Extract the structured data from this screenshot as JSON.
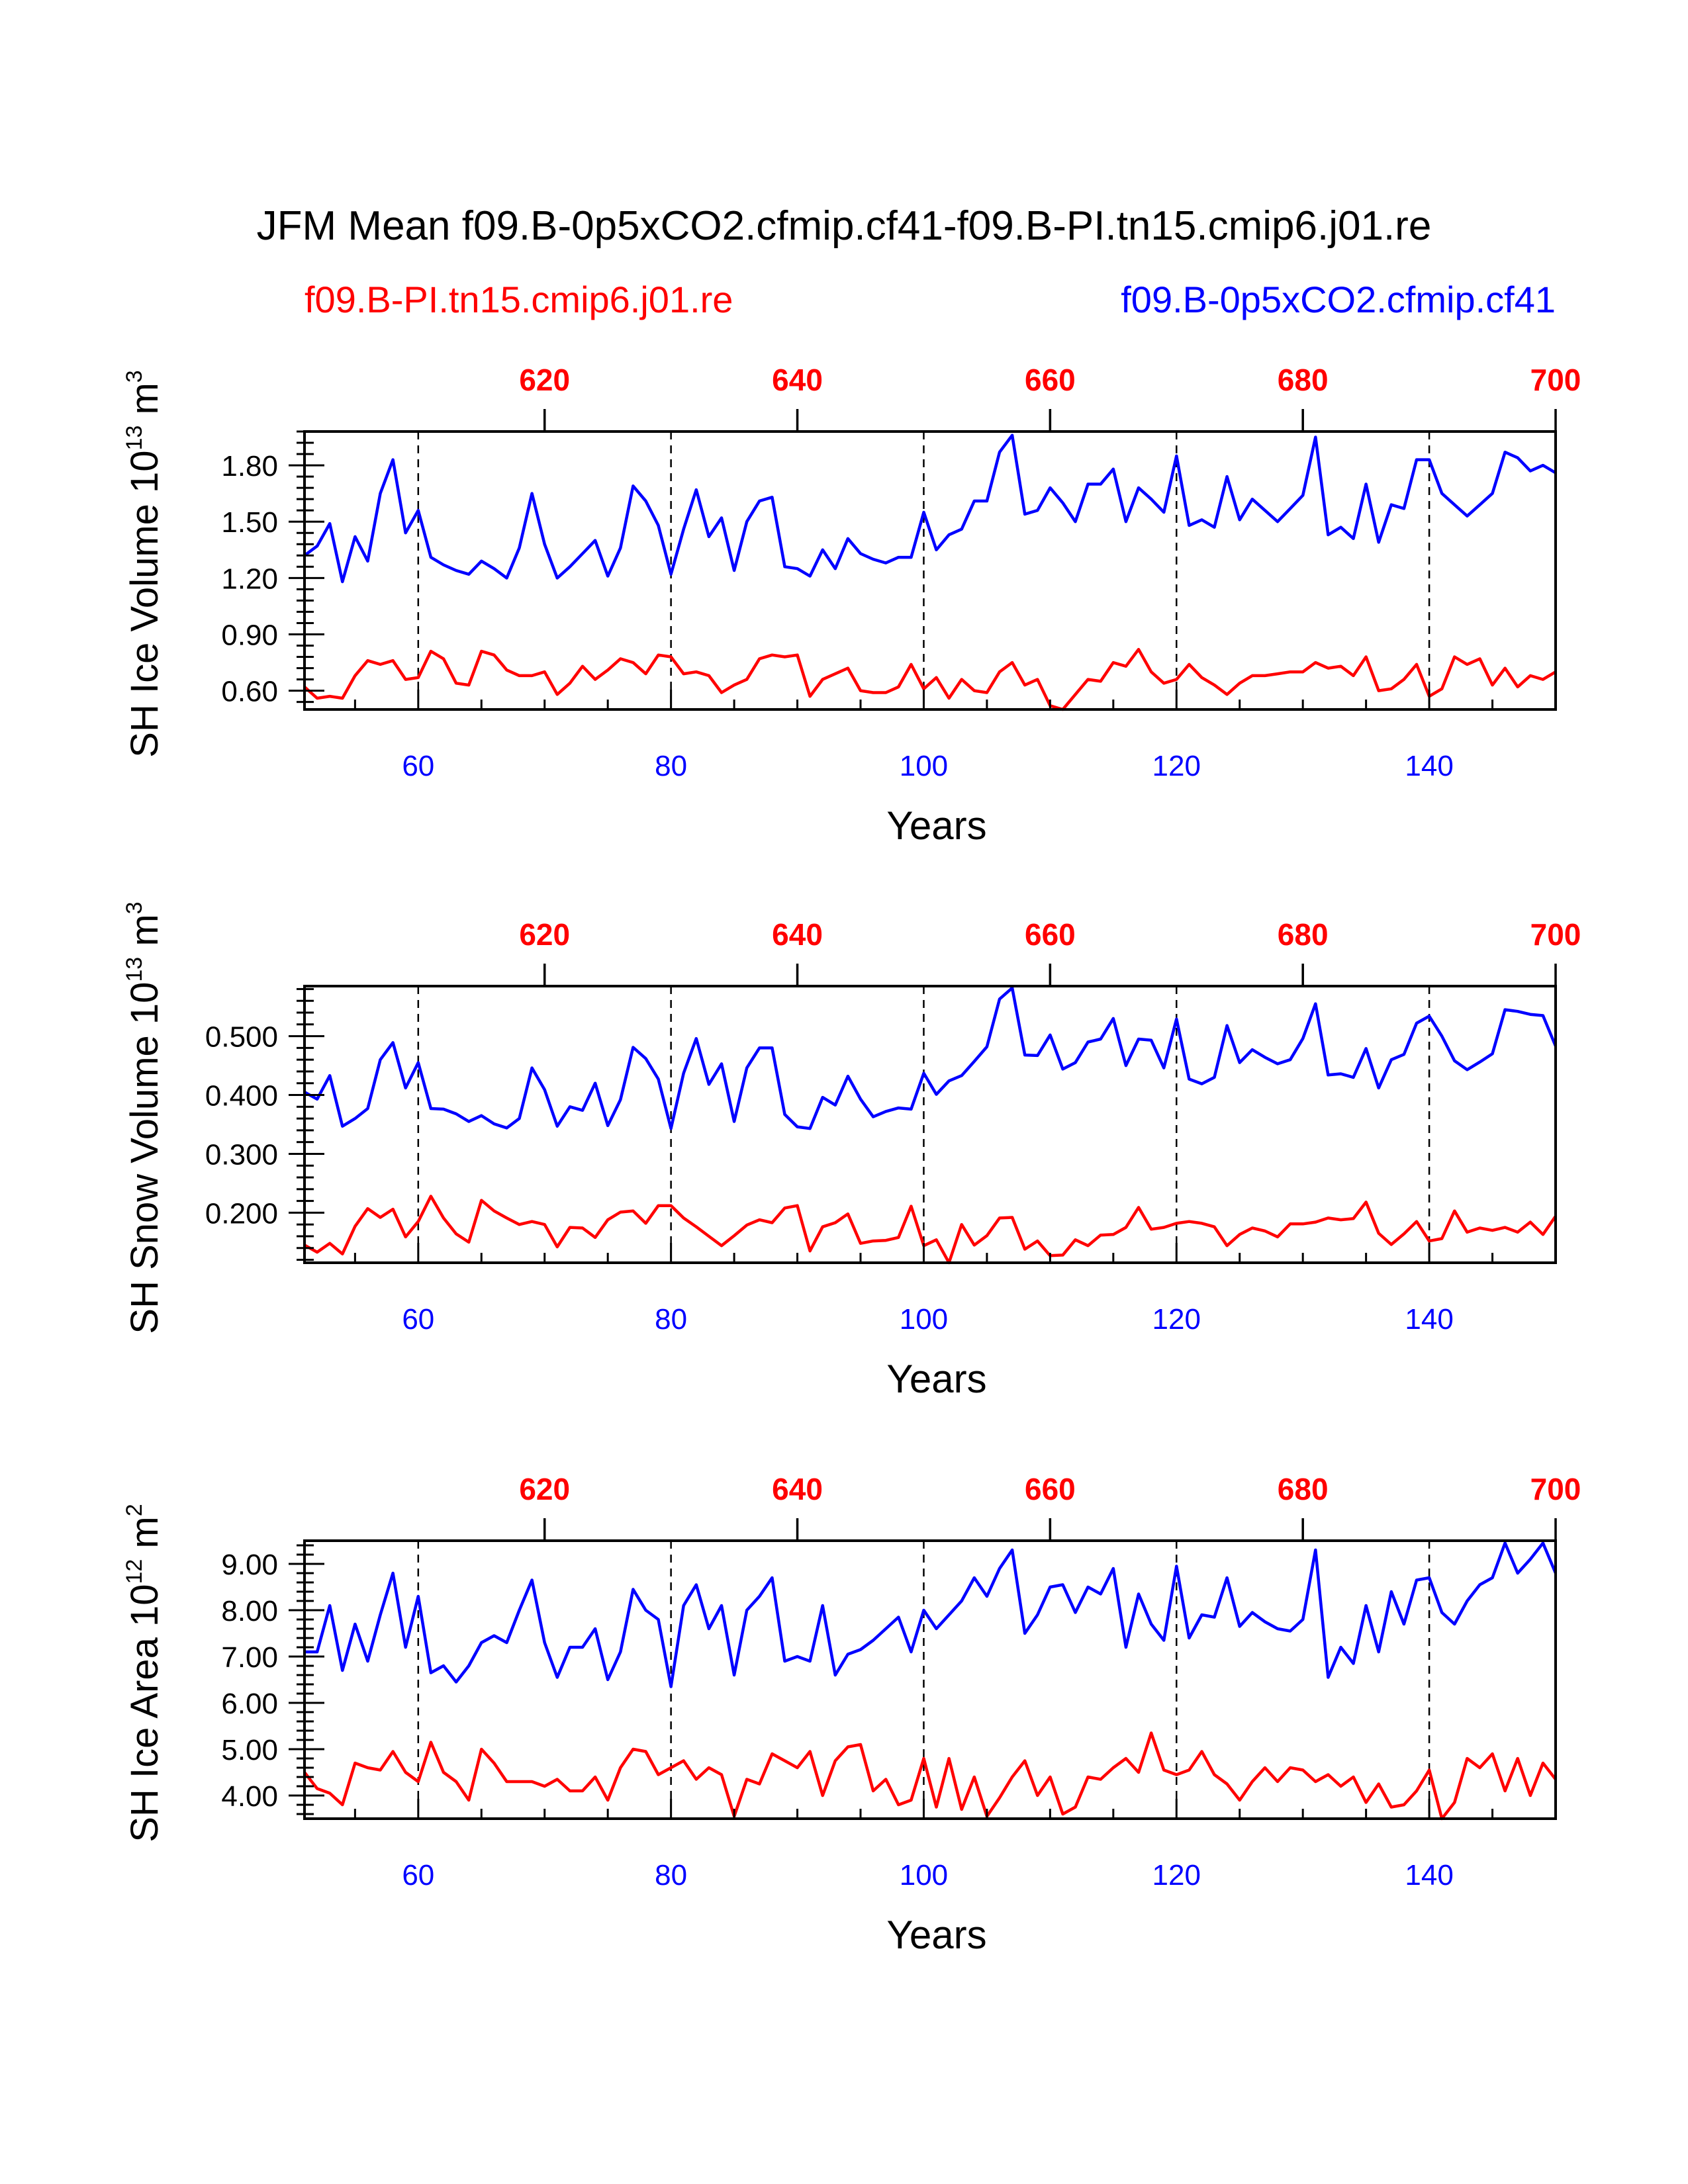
{
  "title": "JFM Mean f09.B-0p5xCO2.cfmip.cf41-f09.B-PI.tn15.cmip6.j01.re",
  "legend": {
    "control": "f09.B-PI.tn15.cmip6.j01.re",
    "experiment": "f09.B-0p5xCO2.cfmip.cf41"
  },
  "colors": {
    "control": "#ff0000",
    "experiment": "#0000ff",
    "axis": "#000000"
  },
  "chart_data": [
    {
      "type": "line",
      "ylabel": {
        "base": "SH Ice Volume 10",
        "exp": "13",
        "unit": " m",
        "unit_exp": "3"
      },
      "xlabel": "Years",
      "xlim": [
        51,
        150
      ],
      "top_xlim": [
        601,
        700
      ],
      "xticks": [
        "60",
        "80",
        "100",
        "120",
        "140"
      ],
      "top_xticks": [
        "620",
        "640",
        "660",
        "680",
        "700"
      ],
      "ylim": [
        0.5,
        1.98
      ],
      "yticks": [
        "0.60",
        "0.90",
        "1.20",
        "1.50",
        "1.80"
      ],
      "series": [
        {
          "name": "f09.B-0p5xCO2.cfmip.cf41",
          "color": "#0000ff",
          "values": [
            1.32,
            1.37,
            1.49,
            1.18,
            1.42,
            1.29,
            1.65,
            1.83,
            1.44,
            1.56,
            1.31,
            1.27,
            1.24,
            1.22,
            1.29,
            1.25,
            1.2,
            1.36,
            1.65,
            1.38,
            1.2,
            1.26,
            1.33,
            1.4,
            1.21,
            1.36,
            1.69,
            1.61,
            1.48,
            1.22,
            1.46,
            1.67,
            1.42,
            1.52,
            1.24,
            1.5,
            1.61,
            1.63,
            1.26,
            1.25,
            1.21,
            1.35,
            1.25,
            1.41,
            1.33,
            1.3,
            1.28,
            1.31,
            1.31,
            1.55,
            1.35,
            1.43,
            1.46,
            1.61,
            1.61,
            1.87,
            1.96,
            1.54,
            1.56,
            1.68,
            1.6,
            1.5,
            1.7,
            1.7,
            1.78,
            1.5,
            1.68,
            1.62,
            1.55,
            1.85,
            1.48,
            1.51,
            1.47,
            1.74,
            1.51,
            1.62,
            1.56,
            1.5,
            1.57,
            1.64,
            1.95,
            1.43,
            1.47,
            1.41,
            1.7,
            1.39,
            1.59,
            1.57,
            1.83,
            1.83,
            1.65,
            1.59,
            1.53,
            1.59,
            1.65,
            1.87,
            1.84,
            1.77,
            1.8,
            1.76
          ]
        },
        {
          "name": "f09.B-PI.tn15.cmip6.j01.re",
          "color": "#ff0000",
          "values": [
            0.62,
            0.56,
            0.57,
            0.56,
            0.68,
            0.76,
            0.74,
            0.76,
            0.66,
            0.67,
            0.81,
            0.77,
            0.64,
            0.63,
            0.81,
            0.79,
            0.71,
            0.68,
            0.68,
            0.7,
            0.58,
            0.64,
            0.73,
            0.66,
            0.71,
            0.77,
            0.75,
            0.69,
            0.79,
            0.78,
            0.69,
            0.7,
            0.68,
            0.59,
            0.63,
            0.66,
            0.77,
            0.79,
            0.78,
            0.79,
            0.57,
            0.66,
            0.69,
            0.72,
            0.6,
            0.59,
            0.59,
            0.62,
            0.74,
            0.61,
            0.67,
            0.56,
            0.66,
            0.6,
            0.59,
            0.7,
            0.75,
            0.63,
            0.66,
            0.52,
            0.5,
            0.58,
            0.66,
            0.65,
            0.75,
            0.73,
            0.82,
            0.7,
            0.64,
            0.66,
            0.74,
            0.67,
            0.63,
            0.58,
            0.64,
            0.68,
            0.68,
            0.69,
            0.7,
            0.7,
            0.75,
            0.72,
            0.73,
            0.68,
            0.78,
            0.6,
            0.61,
            0.66,
            0.74,
            0.57,
            0.61,
            0.78,
            0.74,
            0.77,
            0.63,
            0.72,
            0.62,
            0.68,
            0.66,
            0.7
          ]
        }
      ]
    },
    {
      "type": "line",
      "ylabel": {
        "base": "SH Snow Volume 10",
        "exp": "13",
        "unit": " m",
        "unit_exp": "3"
      },
      "xlabel": "Years",
      "xlim": [
        51,
        150
      ],
      "top_xlim": [
        601,
        700
      ],
      "xticks": [
        "60",
        "80",
        "100",
        "120",
        "140"
      ],
      "top_xticks": [
        "620",
        "640",
        "660",
        "680",
        "700"
      ],
      "ylim": [
        0.115,
        0.585
      ],
      "yticks": [
        "0.200",
        "0.300",
        "0.400",
        "0.500"
      ],
      "series": [
        {
          "name": "f09.B-0p5xCO2.cfmip.cf41",
          "color": "#0000ff",
          "values": [
            0.405,
            0.393,
            0.433,
            0.347,
            0.36,
            0.377,
            0.46,
            0.489,
            0.412,
            0.455,
            0.377,
            0.376,
            0.368,
            0.355,
            0.365,
            0.351,
            0.344,
            0.36,
            0.446,
            0.409,
            0.347,
            0.38,
            0.374,
            0.42,
            0.348,
            0.392,
            0.481,
            0.462,
            0.427,
            0.343,
            0.437,
            0.496,
            0.418,
            0.453,
            0.355,
            0.446,
            0.48,
            0.48,
            0.367,
            0.346,
            0.343,
            0.396,
            0.383,
            0.432,
            0.393,
            0.363,
            0.372,
            0.378,
            0.376,
            0.437,
            0.401,
            0.424,
            0.433,
            0.457,
            0.482,
            0.563,
            0.582,
            0.468,
            0.467,
            0.502,
            0.444,
            0.455,
            0.49,
            0.495,
            0.53,
            0.45,
            0.495,
            0.493,
            0.446,
            0.529,
            0.427,
            0.419,
            0.43,
            0.518,
            0.455,
            0.477,
            0.464,
            0.453,
            0.46,
            0.496,
            0.555,
            0.434,
            0.436,
            0.43,
            0.479,
            0.412,
            0.46,
            0.469,
            0.522,
            0.534,
            0.5,
            0.458,
            0.443,
            0.456,
            0.47,
            0.545,
            0.542,
            0.537,
            0.535,
            0.483
          ]
        },
        {
          "name": "f09.B-PI.tn15.cmip6.j01.re",
          "color": "#ff0000",
          "values": [
            0.145,
            0.133,
            0.148,
            0.13,
            0.177,
            0.207,
            0.192,
            0.206,
            0.159,
            0.185,
            0.228,
            0.191,
            0.164,
            0.15,
            0.221,
            0.203,
            0.191,
            0.18,
            0.185,
            0.18,
            0.142,
            0.175,
            0.174,
            0.158,
            0.188,
            0.201,
            0.203,
            0.182,
            0.212,
            0.212,
            0.191,
            0.176,
            0.16,
            0.144,
            0.161,
            0.179,
            0.188,
            0.183,
            0.208,
            0.212,
            0.135,
            0.176,
            0.183,
            0.198,
            0.148,
            0.152,
            0.153,
            0.158,
            0.211,
            0.144,
            0.154,
            0.115,
            0.18,
            0.145,
            0.161,
            0.191,
            0.192,
            0.138,
            0.152,
            0.127,
            0.128,
            0.154,
            0.144,
            0.162,
            0.163,
            0.175,
            0.209,
            0.172,
            0.175,
            0.182,
            0.185,
            0.182,
            0.176,
            0.144,
            0.163,
            0.174,
            0.169,
            0.159,
            0.181,
            0.181,
            0.184,
            0.191,
            0.188,
            0.19,
            0.218,
            0.165,
            0.146,
            0.164,
            0.185,
            0.152,
            0.156,
            0.203,
            0.167,
            0.174,
            0.17,
            0.175,
            0.167,
            0.184,
            0.163,
            0.194
          ]
        }
      ]
    },
    {
      "type": "line",
      "ylabel": {
        "base": "SH Ice Area 10",
        "exp": "12",
        "unit": " m",
        "unit_exp": "2"
      },
      "xlabel": "Years",
      "xlim": [
        51,
        150
      ],
      "top_xlim": [
        601,
        700
      ],
      "xticks": [
        "60",
        "80",
        "100",
        "120",
        "140"
      ],
      "top_xticks": [
        "620",
        "640",
        "660",
        "680",
        "700"
      ],
      "ylim": [
        3.5,
        9.5
      ],
      "yticks": [
        "4.00",
        "5.00",
        "6.00",
        "7.00",
        "8.00",
        "9.00"
      ],
      "series": [
        {
          "name": "f09.B-0p5xCO2.cfmip.cf41",
          "color": "#0000ff",
          "values": [
            7.1,
            7.1,
            8.1,
            6.7,
            7.7,
            6.9,
            7.9,
            8.8,
            7.2,
            8.3,
            6.65,
            6.8,
            6.45,
            6.8,
            7.3,
            7.45,
            7.3,
            8.0,
            8.65,
            7.3,
            6.55,
            7.2,
            7.2,
            7.6,
            6.5,
            7.1,
            8.45,
            8.0,
            7.8,
            6.35,
            8.1,
            8.55,
            7.6,
            8.1,
            6.6,
            8.0,
            8.3,
            8.7,
            6.9,
            7.0,
            6.9,
            8.1,
            6.6,
            7.05,
            7.15,
            7.35,
            7.6,
            7.85,
            7.1,
            8.0,
            7.6,
            7.9,
            8.2,
            8.7,
            8.3,
            8.9,
            9.3,
            7.5,
            7.9,
            8.5,
            8.55,
            7.95,
            8.5,
            8.35,
            8.9,
            7.2,
            8.35,
            7.7,
            7.35,
            8.95,
            7.4,
            7.9,
            7.85,
            8.7,
            7.65,
            7.95,
            7.75,
            7.6,
            7.55,
            7.8,
            9.3,
            6.55,
            7.2,
            6.85,
            8.1,
            7.1,
            8.4,
            7.7,
            8.65,
            8.7,
            7.95,
            7.7,
            8.2,
            8.55,
            8.7,
            9.45,
            8.8,
            9.1,
            9.45,
            8.8
          ]
        },
        {
          "name": "f09.B-PI.tn15.cmip6.j01.re",
          "color": "#ff0000",
          "values": [
            4.5,
            4.15,
            4.05,
            3.8,
            4.7,
            4.6,
            4.55,
            4.95,
            4.5,
            4.3,
            5.15,
            4.5,
            4.3,
            3.9,
            5.0,
            4.7,
            4.3,
            4.3,
            4.3,
            4.2,
            4.35,
            4.1,
            4.1,
            4.4,
            3.9,
            4.6,
            5.0,
            4.95,
            4.45,
            4.6,
            4.75,
            4.35,
            4.6,
            4.45,
            3.55,
            4.35,
            4.25,
            4.9,
            4.75,
            4.6,
            4.95,
            4.0,
            4.75,
            5.05,
            5.1,
            4.1,
            4.35,
            3.8,
            3.9,
            4.8,
            3.75,
            4.8,
            3.7,
            4.4,
            3.55,
            3.95,
            4.4,
            4.75,
            4.0,
            4.4,
            3.6,
            3.75,
            4.4,
            4.35,
            4.6,
            4.8,
            4.5,
            5.35,
            4.55,
            4.45,
            4.55,
            4.95,
            4.45,
            4.25,
            3.9,
            4.3,
            4.6,
            4.3,
            4.6,
            4.55,
            4.3,
            4.45,
            4.2,
            4.4,
            3.85,
            4.25,
            3.75,
            3.8,
            4.1,
            4.55,
            3.5,
            3.85,
            4.8,
            4.6,
            4.9,
            4.1,
            4.8,
            4.0,
            4.7,
            4.35
          ]
        }
      ]
    }
  ]
}
